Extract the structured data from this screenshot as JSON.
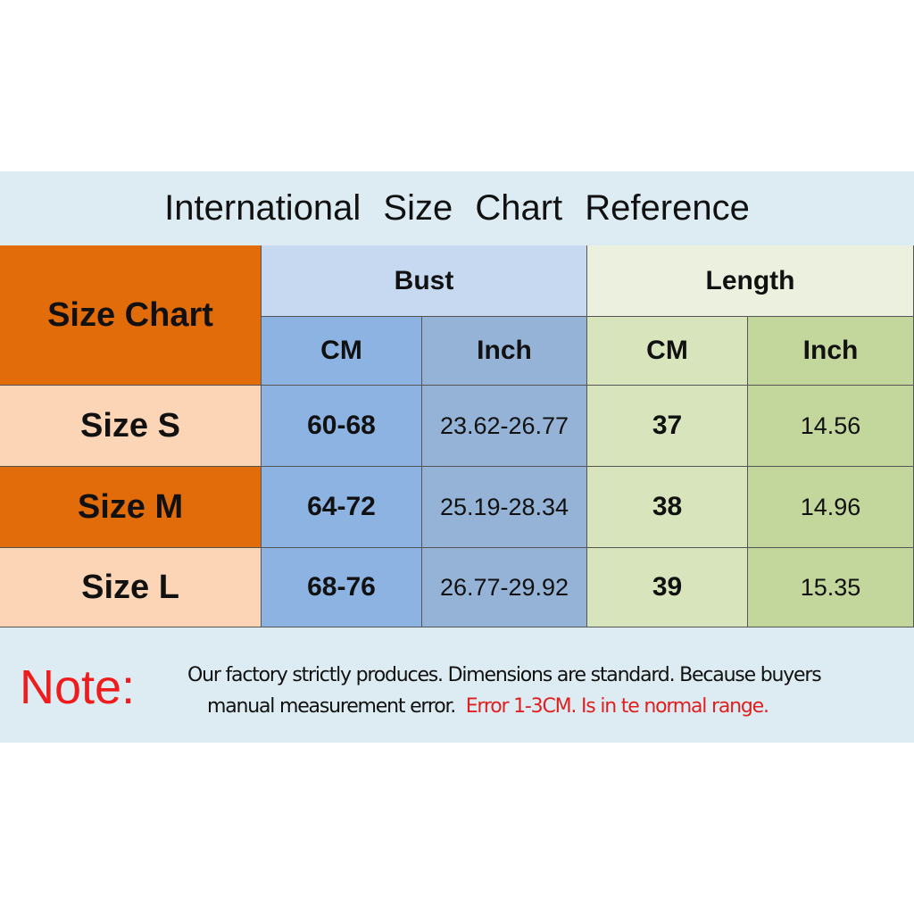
{
  "title": "International  Size  Chart  Reference",
  "table": {
    "corner": "Size Chart",
    "groups": [
      "Bust",
      "Length"
    ],
    "units": [
      "CM",
      "Inch",
      "CM",
      "Inch"
    ],
    "rows": [
      {
        "size": "Size S",
        "bust_cm": "60-68",
        "bust_inch": "23.62-26.77",
        "length_cm": "37",
        "length_inch": "14.56"
      },
      {
        "size": "Size M",
        "bust_cm": "64-72",
        "bust_inch": "25.19-28.34",
        "length_cm": "38",
        "length_inch": "14.96"
      },
      {
        "size": "Size L",
        "bust_cm": "68-76",
        "bust_inch": "26.77-29.92",
        "length_cm": "39",
        "length_inch": "15.35"
      }
    ]
  },
  "note": {
    "label": "Note:",
    "line1": "Our factory strictly produces.  Dimensions are standard.  Because buyers",
    "line2": "manual measurement error.",
    "line2_red": "Error 1-3CM.  Is in te normal range."
  },
  "colors": {
    "orange": "#e36c0a",
    "peach": "#fbd5b5",
    "blue": "#8db3e2",
    "green": "#c3d69b",
    "note_red": "#ee1c1c"
  }
}
